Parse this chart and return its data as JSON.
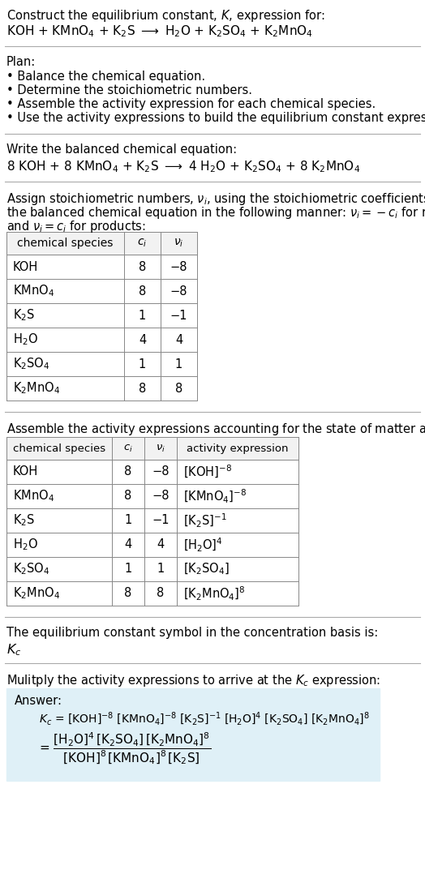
{
  "bg_color": "#ffffff",
  "title_line1": "Construct the equilibrium constant, $K$, expression for:",
  "title_line2": "KOH + KMnO$_4$ + K$_2$S $\\longrightarrow$ H$_2$O + K$_2$SO$_4$ + K$_2$MnO$_4$",
  "plan_header": "Plan:",
  "plan_bullets": [
    "• Balance the chemical equation.",
    "• Determine the stoichiometric numbers.",
    "• Assemble the activity expression for each chemical species.",
    "• Use the activity expressions to build the equilibrium constant expression."
  ],
  "balanced_header": "Write the balanced chemical equation:",
  "balanced_eq": "8 KOH + 8 KMnO$_4$ + K$_2$S $\\longrightarrow$ 4 H$_2$O + K$_2$SO$_4$ + 8 K$_2$MnO$_4$",
  "stoich_text1": "Assign stoichiometric numbers, $\\nu_i$, using the stoichiometric coefficients, $c_i$, from",
  "stoich_text2": "the balanced chemical equation in the following manner: $\\nu_i = -c_i$ for reactants",
  "stoich_text3": "and $\\nu_i = c_i$ for products:",
  "table1_header": [
    "chemical species",
    "$c_i$",
    "$\\nu_i$"
  ],
  "table1_rows": [
    [
      "KOH",
      "8",
      "−8"
    ],
    [
      "KMnO$_4$",
      "8",
      "−8"
    ],
    [
      "K$_2$S",
      "1",
      "−1"
    ],
    [
      "H$_2$O",
      "4",
      "4"
    ],
    [
      "K$_2$SO$_4$",
      "1",
      "1"
    ],
    [
      "K$_2$MnO$_4$",
      "8",
      "8"
    ]
  ],
  "activity_header": "Assemble the activity expressions accounting for the state of matter and $\\nu_i$:",
  "table2_header": [
    "chemical species",
    "$c_i$",
    "$\\nu_i$",
    "activity expression"
  ],
  "table2_rows": [
    [
      "KOH",
      "8",
      "−8",
      "[KOH]$^{-8}$"
    ],
    [
      "KMnO$_4$",
      "8",
      "−8",
      "[KMnO$_4$]$^{-8}$"
    ],
    [
      "K$_2$S",
      "1",
      "−1",
      "[K$_2$S]$^{-1}$"
    ],
    [
      "H$_2$O",
      "4",
      "4",
      "[H$_2$O]$^4$"
    ],
    [
      "K$_2$SO$_4$",
      "1",
      "1",
      "[K$_2$SO$_4$]"
    ],
    [
      "K$_2$MnO$_4$",
      "8",
      "8",
      "[K$_2$MnO$_4$]$^8$"
    ]
  ],
  "kc_header": "The equilibrium constant symbol in the concentration basis is:",
  "kc_symbol": "$K_c$",
  "multiply_header": "Mulitply the activity expressions to arrive at the $K_c$ expression:",
  "answer_label": "Answer:",
  "answer_kc_line": "$K_c$ = [KOH]$^{-8}$ [KMnO$_4$]$^{-8}$ [K$_2$S]$^{-1}$ [H$_2$O]$^4$ [K$_2$SO$_4$] [K$_2$MnO$_4$]$^8$",
  "answer_eq_line": "= $\\dfrac{\\mathrm{[H_2O]^4\\,[K_2SO_4]\\,[K_2MnO_4]^8}}{\\mathrm{[KOH]^8\\,[KMnO_4]^8\\,[K_2S]}}$",
  "answer_box_color": "#dff0f7",
  "answer_box_edge": "#aaccdd",
  "sep_color": "#aaaaaa",
  "table_line_color": "#888888",
  "table_header_bg": "#f2f2f2"
}
